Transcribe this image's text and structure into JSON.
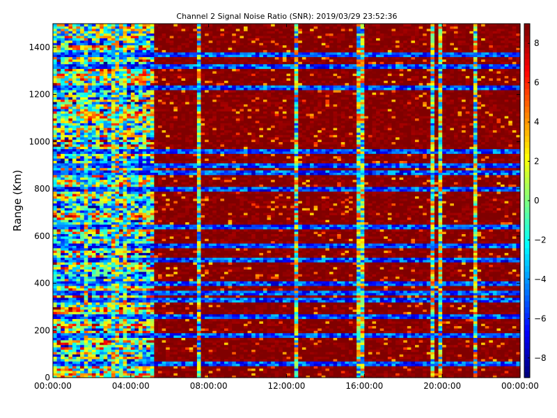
{
  "chart_data": {
    "type": "heatmap",
    "title": "Channel 2 Signal Noise Ratio (SNR): 2019/03/29 23:52:36",
    "xlabel": "",
    "ylabel": "Range (Km)",
    "x_tick_labels": [
      "00:00:00",
      "04:00:00",
      "08:00:00",
      "12:00:00",
      "16:00:00",
      "20:00:00",
      "00:00:00"
    ],
    "x_range_hours": [
      0,
      24
    ],
    "y_ticks": [
      0,
      200,
      400,
      600,
      800,
      1000,
      1200,
      1400
    ],
    "ylim": [
      0,
      1500
    ],
    "colorbar": {
      "colormap": "jet",
      "range": [
        -9,
        9
      ],
      "ticks": [
        -8,
        -6,
        -4,
        -2,
        0,
        2,
        4,
        6,
        8
      ],
      "tick_labels": [
        "−8",
        "−6",
        "−4",
        "−2",
        "0",
        "2",
        "4",
        "6",
        "8"
      ]
    },
    "approx_pattern": {
      "quiet_period_hours": [
        0,
        5.3
      ],
      "quiet_snr_mean": 0,
      "active_snr_mean": 9,
      "low_snr_ranges_km": [
        60,
        180,
        260,
        330,
        360,
        400,
        500,
        560,
        640,
        800,
        870,
        900,
        960,
        1230,
        1320,
        1370
      ],
      "low_snr_hours": [
        1.7,
        3.1,
        3.3,
        3.7,
        7.5,
        12.6,
        15.8,
        19.5,
        20.0,
        21.7
      ]
    }
  },
  "colors": {
    "axis": "#000000",
    "background": "#ffffff"
  }
}
